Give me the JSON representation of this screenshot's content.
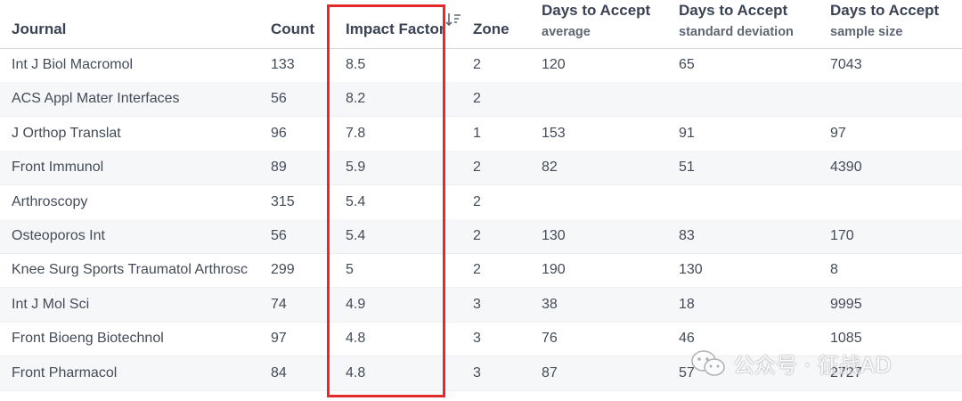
{
  "columns": [
    {
      "label": "Journal",
      "sub": ""
    },
    {
      "label": "Count",
      "sub": ""
    },
    {
      "label": "Impact Factor",
      "sub": ""
    },
    {
      "label": "Zone",
      "sub": ""
    },
    {
      "label": "Days to Accept",
      "sub": "average"
    },
    {
      "label": "Days to Accept",
      "sub": "standard deviation"
    },
    {
      "label": "Days to Accept",
      "sub": "sample size"
    }
  ],
  "rows": [
    [
      "Int J Biol Macromol",
      "133",
      "8.5",
      "2",
      "120",
      "65",
      "7043"
    ],
    [
      "ACS Appl Mater Interfaces",
      "56",
      "8.2",
      "2",
      "",
      "",
      ""
    ],
    [
      "J Orthop Translat",
      "96",
      "7.8",
      "1",
      "153",
      "91",
      "97"
    ],
    [
      "Front Immunol",
      "89",
      "5.9",
      "2",
      "82",
      "51",
      "4390"
    ],
    [
      "Arthroscopy",
      "315",
      "5.4",
      "2",
      "",
      "",
      ""
    ],
    [
      "Osteoporos Int",
      "56",
      "5.4",
      "2",
      "130",
      "83",
      "170"
    ],
    [
      "Knee Surg Sports Traumatol Arthrosc",
      "299",
      "5",
      "2",
      "190",
      "130",
      "8"
    ],
    [
      "Int J Mol Sci",
      "74",
      "4.9",
      "3",
      "38",
      "18",
      "9995"
    ],
    [
      "Front Bioeng Biotechnol",
      "97",
      "4.8",
      "3",
      "76",
      "46",
      "1085"
    ],
    [
      "Front Pharmacol",
      "84",
      "4.8",
      "3",
      "87",
      "57",
      "2727"
    ]
  ],
  "icons": {
    "sort": "sort-descending-icon",
    "watermark": "wechat-icon"
  },
  "colors": {
    "highlight": "#e32b2b",
    "header_text": "#3a4354",
    "row_alt": "#f6f7f9"
  },
  "watermark": {
    "text": "公众号 · 征战AD"
  }
}
